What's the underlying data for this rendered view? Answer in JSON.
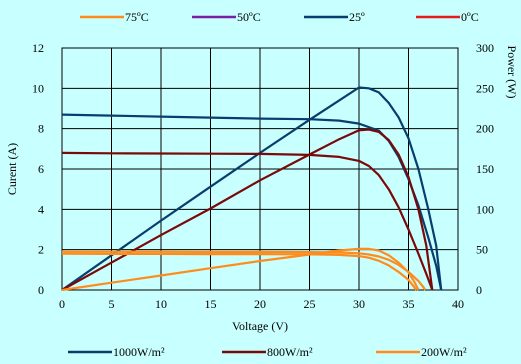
{
  "chart_data": {
    "type": "line",
    "xlabel": "Voltage (V)",
    "ylabel_left": "Curent (A)",
    "ylabel_right": "Power (W)",
    "xlim": [
      0,
      40
    ],
    "ylim_left": [
      0,
      12
    ],
    "ylim_right": [
      0,
      300
    ],
    "x_ticks": [
      "0",
      "5",
      "10",
      "15",
      "20",
      "25",
      "30",
      "35",
      "40"
    ],
    "y_left_ticks": [
      "0",
      "2",
      "4",
      "6",
      "8",
      "10",
      "12"
    ],
    "y_right_ticks": [
      "0",
      "50",
      "100",
      "150",
      "200",
      "250",
      "300"
    ],
    "grid": true,
    "legend_top": [
      {
        "label": "75ºC",
        "color": "#ff8c1a"
      },
      {
        "label": "50ºC",
        "color": "#7a1fa2"
      },
      {
        "label": "25º",
        "color": "#083e6e"
      },
      {
        "label": "0ºC",
        "color": "#e81a1a"
      }
    ],
    "legend_bottom": [
      {
        "label": "1000W/m²",
        "color": "#083e6e"
      },
      {
        "label": "800W/m²",
        "color": "#7a0a0a"
      },
      {
        "label": "200W/m²",
        "color": "#ff8c1a"
      }
    ],
    "series": [
      {
        "axis": "left",
        "color": "#083e6e",
        "points": [
          [
            0,
            8.7
          ],
          [
            5,
            8.65
          ],
          [
            10,
            8.6
          ],
          [
            15,
            8.55
          ],
          [
            20,
            8.5
          ],
          [
            25,
            8.47
          ],
          [
            28,
            8.4
          ],
          [
            30,
            8.25
          ],
          [
            32,
            7.9
          ],
          [
            33,
            7.4
          ],
          [
            34,
            6.6
          ],
          [
            35,
            5.5
          ],
          [
            36,
            4.2
          ],
          [
            37,
            2.6
          ],
          [
            37.8,
            1.2
          ],
          [
            38.3,
            0
          ]
        ]
      },
      {
        "axis": "right",
        "color": "#083e6e",
        "points": [
          [
            0,
            0
          ],
          [
            5,
            43
          ],
          [
            10,
            86
          ],
          [
            15,
            128
          ],
          [
            20,
            170
          ],
          [
            25,
            211
          ],
          [
            28,
            235
          ],
          [
            30,
            251
          ],
          [
            31,
            250
          ],
          [
            32,
            245
          ],
          [
            33,
            232
          ],
          [
            34,
            214
          ],
          [
            35,
            188
          ],
          [
            36,
            150
          ],
          [
            37,
            100
          ],
          [
            37.8,
            55
          ],
          [
            38.3,
            0
          ]
        ]
      },
      {
        "axis": "left",
        "color": "#7a0a0a",
        "points": [
          [
            0,
            6.8
          ],
          [
            5,
            6.78
          ],
          [
            10,
            6.77
          ],
          [
            15,
            6.76
          ],
          [
            20,
            6.75
          ],
          [
            25,
            6.7
          ],
          [
            28,
            6.6
          ],
          [
            30,
            6.4
          ],
          [
            31,
            6.15
          ],
          [
            32,
            5.7
          ],
          [
            33,
            5.0
          ],
          [
            34,
            4.1
          ],
          [
            35,
            3.0
          ],
          [
            36,
            1.8
          ],
          [
            36.8,
            0.8
          ],
          [
            37.4,
            0
          ]
        ]
      },
      {
        "axis": "right",
        "color": "#7a0a0a",
        "points": [
          [
            0,
            0
          ],
          [
            5,
            34
          ],
          [
            10,
            68
          ],
          [
            15,
            101
          ],
          [
            20,
            136
          ],
          [
            25,
            168
          ],
          [
            28,
            187
          ],
          [
            30,
            198
          ],
          [
            31,
            199
          ],
          [
            32,
            196
          ],
          [
            33,
            186
          ],
          [
            34,
            168
          ],
          [
            35,
            140
          ],
          [
            36,
            100
          ],
          [
            36.8,
            55
          ],
          [
            37.4,
            0
          ]
        ]
      },
      {
        "axis": "left",
        "color": "#ff8c1a",
        "points": [
          [
            0,
            1.8
          ],
          [
            5,
            1.79
          ],
          [
            10,
            1.79
          ],
          [
            15,
            1.78
          ],
          [
            20,
            1.78
          ],
          [
            25,
            1.77
          ],
          [
            28,
            1.74
          ],
          [
            30,
            1.68
          ],
          [
            31,
            1.6
          ],
          [
            32,
            1.45
          ],
          [
            33,
            1.22
          ],
          [
            34,
            0.9
          ],
          [
            35,
            0.5
          ],
          [
            35.5,
            0.2
          ],
          [
            35.8,
            0
          ]
        ]
      },
      {
        "axis": "right",
        "color": "#ff8c1a",
        "points": [
          [
            0,
            0
          ],
          [
            5,
            9
          ],
          [
            10,
            18
          ],
          [
            15,
            27
          ],
          [
            20,
            36
          ],
          [
            25,
            44
          ],
          [
            28,
            49
          ],
          [
            30,
            51
          ],
          [
            31,
            51
          ],
          [
            32,
            49
          ],
          [
            33,
            43
          ],
          [
            34,
            34
          ],
          [
            35,
            22
          ],
          [
            35.6,
            10
          ],
          [
            36,
            0
          ]
        ]
      },
      {
        "axis": "left",
        "color": "#ff8c1a",
        "points": [
          [
            0,
            1.9
          ],
          [
            5,
            1.9
          ],
          [
            10,
            1.9
          ],
          [
            15,
            1.89
          ],
          [
            20,
            1.89
          ],
          [
            25,
            1.88
          ],
          [
            28,
            1.86
          ],
          [
            30,
            1.82
          ],
          [
            31,
            1.76
          ],
          [
            32,
            1.66
          ],
          [
            33,
            1.5
          ],
          [
            34,
            1.25
          ],
          [
            35,
            0.9
          ],
          [
            36,
            0.45
          ],
          [
            36.5,
            0.15
          ],
          [
            36.7,
            0
          ]
        ]
      }
    ]
  }
}
